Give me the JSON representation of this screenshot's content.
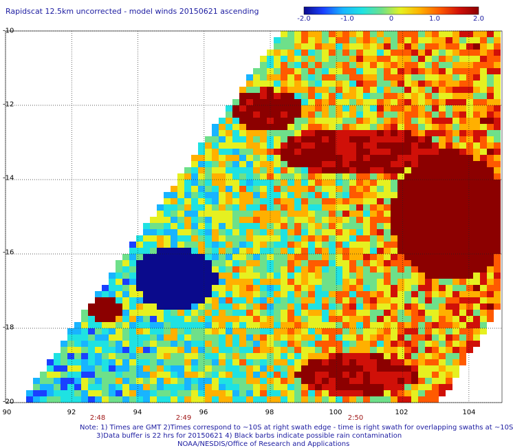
{
  "title": "Rapidscat 12.5km uncorrected - model winds 20150621 ascending",
  "colorbar": {
    "ticks": [
      "-2.0",
      "-1.0",
      "0",
      "1.0",
      "2.0"
    ],
    "tick_values": [
      -2.0,
      -1.0,
      0,
      1.0,
      2.0
    ],
    "colors": [
      "#0a0a8c",
      "#1a40ff",
      "#18b4ff",
      "#1fe2e2",
      "#6ee08a",
      "#e6f020",
      "#ffb000",
      "#ff5a00",
      "#d01008",
      "#8c0000"
    ]
  },
  "axes": {
    "lat_labels": [
      "-10",
      "-12",
      "-14",
      "-16",
      "-18",
      "-20"
    ],
    "lat_values": [
      -10,
      -12,
      -14,
      -16,
      -18,
      -20
    ],
    "lon_labels": [
      "90",
      "92",
      "94",
      "96",
      "98",
      "100",
      "102",
      "104"
    ],
    "lon_values": [
      90,
      92,
      94,
      96,
      98,
      100,
      102,
      104
    ],
    "lat_range": [
      -20,
      -10
    ],
    "lon_range": [
      90,
      105
    ],
    "grid": "dotted"
  },
  "time_labels": [
    {
      "text": "2:48",
      "lon": 92.6
    },
    {
      "text": "2:49",
      "lon": 96.5
    },
    {
      "text": "2:50",
      "lon": 100.6
    }
  ],
  "notes": [
    "Note: 1) Times are GMT 2)Times correspond to ~10S at right swath edge - time is right swath for overlapping swaths at ~10S",
    "3)Data buffer is 22 hrs for 20150621 4) Black barbs indicate possible rain contamination",
    "NOAA/NESDIS/Office of Research and Applications"
  ]
}
